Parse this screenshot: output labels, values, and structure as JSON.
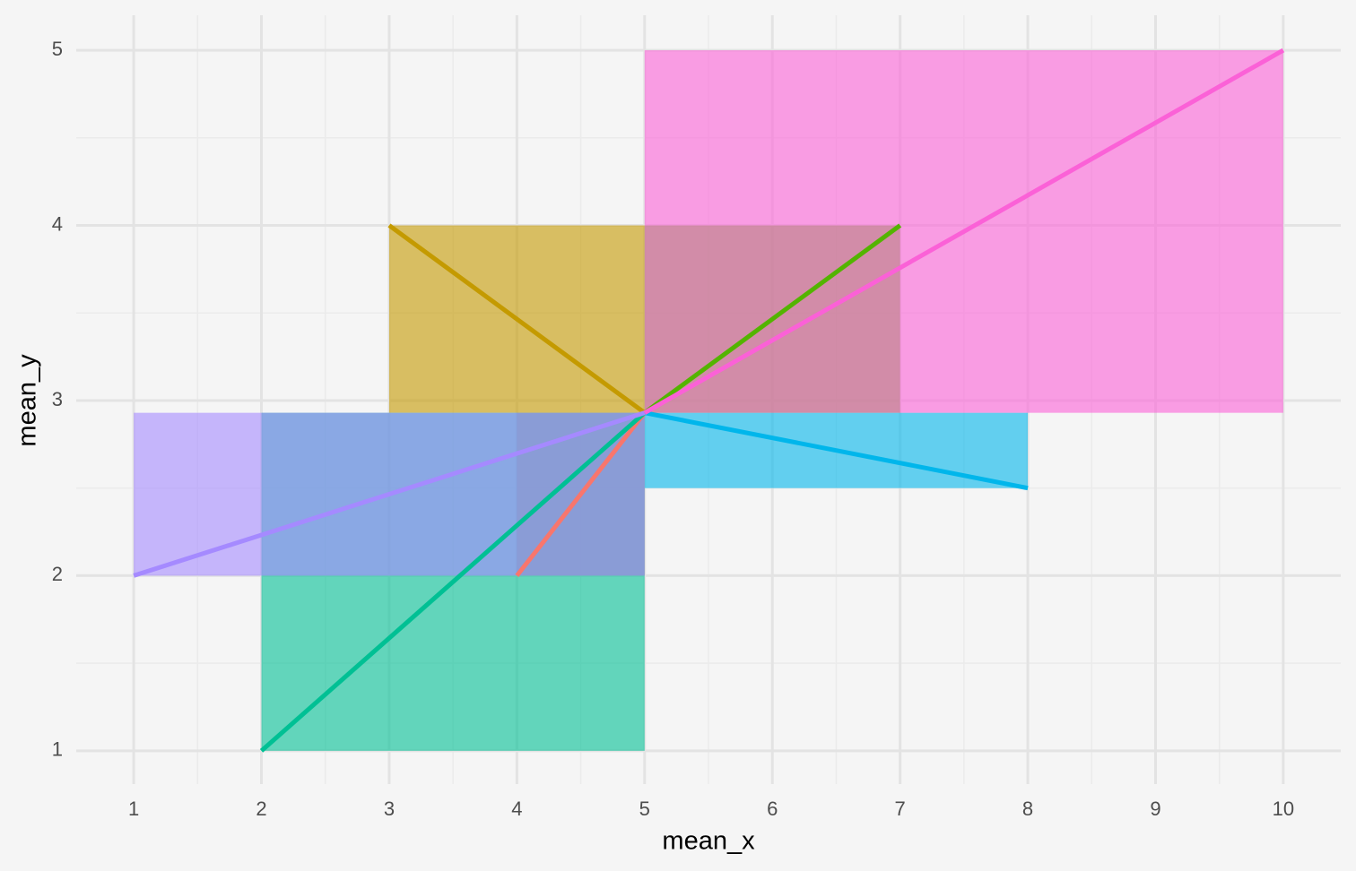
{
  "chart_data": {
    "type": "segment-rect",
    "x_label": "mean_x",
    "y_label": "mean_y",
    "xlim": [
      0.55,
      10.45
    ],
    "ylim": [
      0.81,
      5.2
    ],
    "xticks": [
      1,
      2,
      3,
      4,
      5,
      6,
      7,
      8,
      9,
      10
    ],
    "yticks": [
      1,
      2,
      3,
      4,
      5
    ],
    "grid": true,
    "series": [
      {
        "color": "#F8766D",
        "x": [
          5,
          4
        ],
        "y": [
          2.93,
          2
        ]
      },
      {
        "color": "#C49A00",
        "x": [
          5,
          3
        ],
        "y": [
          2.93,
          4
        ]
      },
      {
        "color": "#53B400",
        "x": [
          5,
          7
        ],
        "y": [
          2.93,
          4
        ]
      },
      {
        "color": "#00C094",
        "x": [
          5,
          2
        ],
        "y": [
          2.93,
          1
        ]
      },
      {
        "color": "#00B6EB",
        "x": [
          5,
          8
        ],
        "y": [
          2.93,
          2.5
        ]
      },
      {
        "color": "#A58AFF",
        "x": [
          5,
          1
        ],
        "y": [
          2.93,
          2
        ]
      },
      {
        "color": "#FB61D7",
        "x": [
          5,
          10
        ],
        "y": [
          2.93,
          5
        ]
      }
    ]
  }
}
